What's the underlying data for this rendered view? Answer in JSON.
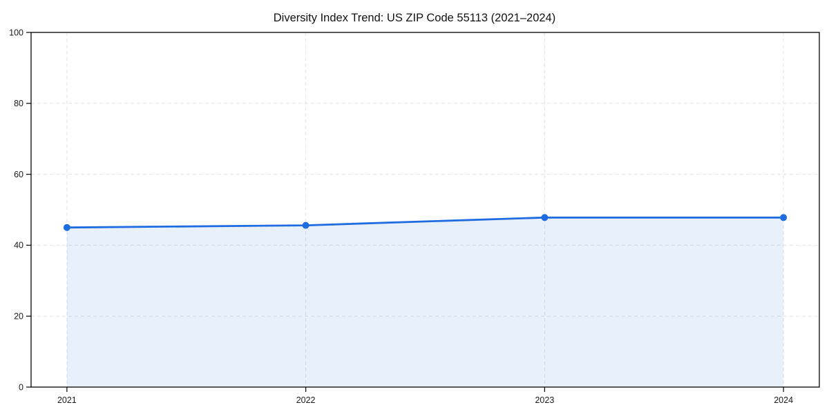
{
  "colors": {
    "line": "#1f6ce0",
    "fill": "rgba(31,108,224,0.10)",
    "grid": "#e3e3e3",
    "spine": "#000000",
    "tick_label": "#1a1a1a",
    "background": "#ffffff"
  },
  "chart_data": {
    "type": "area",
    "title": "Diversity Index Trend: US ZIP Code 55113 (2021–2024)",
    "x": [
      2021,
      2022,
      2023,
      2024
    ],
    "series": [
      {
        "name": "Diversity Index",
        "values": [
          45.0,
          45.6,
          47.8,
          47.8
        ]
      }
    ],
    "xlabel": "",
    "ylabel": "",
    "xtick_labels": [
      "2021",
      "2022",
      "2023",
      "2024"
    ],
    "yticks": [
      0,
      20,
      40,
      60,
      80,
      100
    ],
    "ylim": [
      0,
      100
    ],
    "x_margin_frac": 0.05,
    "grid": true,
    "grid_style": "dashed",
    "legend": "none",
    "marker": "circle"
  }
}
